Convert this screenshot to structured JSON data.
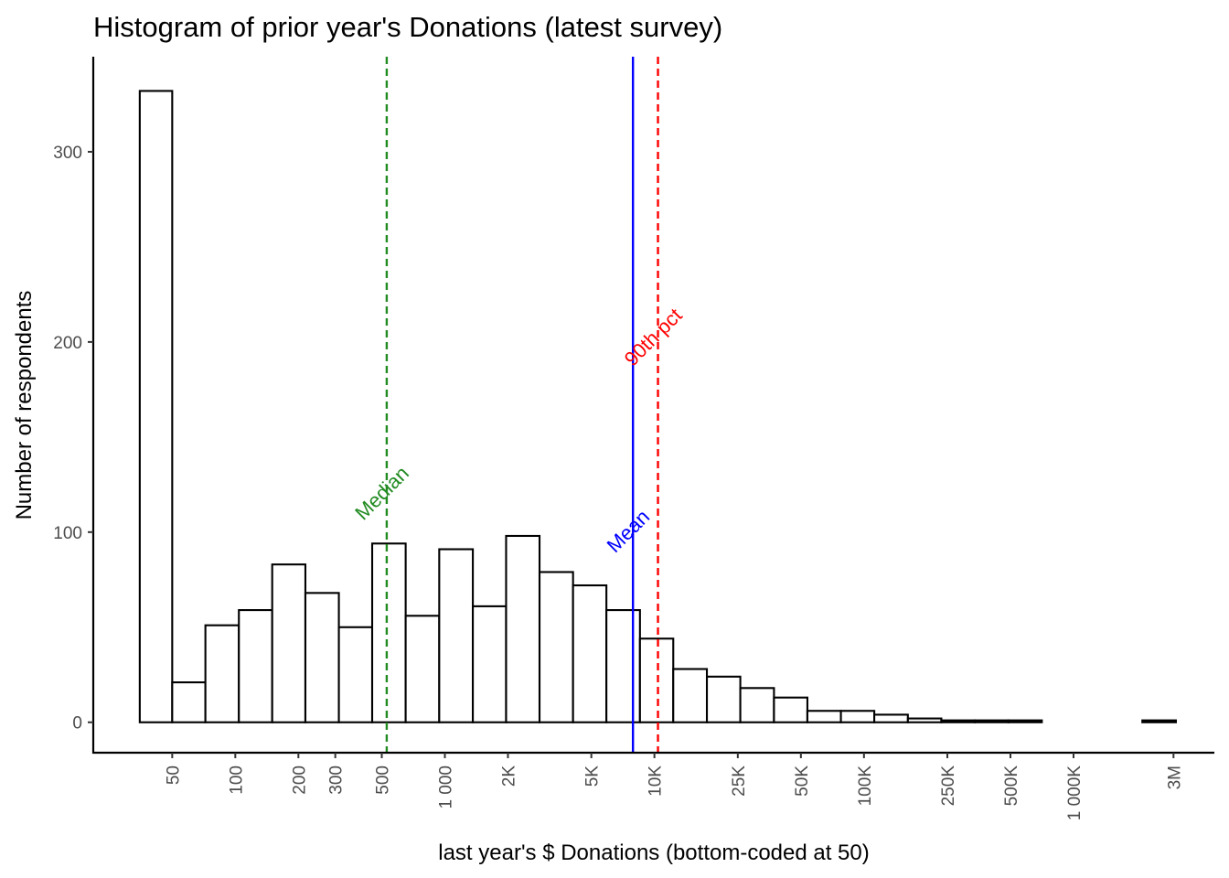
{
  "chart_data": {
    "type": "bar",
    "title": "Histogram of prior year's Donations (latest survey)",
    "xlabel": "last year's $ Donations (bottom-coded at 50)",
    "ylabel": "Number of respondents",
    "x_scale": "log",
    "grid": false,
    "y_ticks": [
      {
        "value": 0,
        "label": "0"
      },
      {
        "value": 100,
        "label": "100"
      },
      {
        "value": 200,
        "label": "200"
      },
      {
        "value": 300,
        "label": "300"
      }
    ],
    "ylim": [
      -16,
      350
    ],
    "x_ticks": [
      {
        "value": 50,
        "label": "50"
      },
      {
        "value": 100,
        "label": "100"
      },
      {
        "value": 200,
        "label": "200"
      },
      {
        "value": 300,
        "label": "300"
      },
      {
        "value": 500,
        "label": "500"
      },
      {
        "value": 1000,
        "label": "1 000"
      },
      {
        "value": 2000,
        "label": "2K"
      },
      {
        "value": 5000,
        "label": "5K"
      },
      {
        "value": 10000,
        "label": "10K"
      },
      {
        "value": 25000,
        "label": "25K"
      },
      {
        "value": 50000,
        "label": "50K"
      },
      {
        "value": 100000,
        "label": "100K"
      },
      {
        "value": 250000,
        "label": "250K"
      },
      {
        "value": 500000,
        "label": "500K"
      },
      {
        "value": 1000000,
        "label": "1 000K"
      },
      {
        "value": 3000000,
        "label": "3M"
      }
    ],
    "xlim": [
      21,
      4700000
    ],
    "bins": [
      {
        "x0": 35,
        "x1": 50,
        "count": 332
      },
      {
        "x0": 50,
        "x1": 72,
        "count": 21
      },
      {
        "x0": 72,
        "x1": 104,
        "count": 51
      },
      {
        "x0": 104,
        "x1": 150,
        "count": 59
      },
      {
        "x0": 150,
        "x1": 216,
        "count": 83
      },
      {
        "x0": 216,
        "x1": 312,
        "count": 68
      },
      {
        "x0": 312,
        "x1": 450,
        "count": 50
      },
      {
        "x0": 450,
        "x1": 650,
        "count": 94
      },
      {
        "x0": 650,
        "x1": 940,
        "count": 56
      },
      {
        "x0": 940,
        "x1": 1360,
        "count": 91
      },
      {
        "x0": 1360,
        "x1": 1960,
        "count": 61
      },
      {
        "x0": 1960,
        "x1": 2830,
        "count": 98
      },
      {
        "x0": 2830,
        "x1": 4090,
        "count": 79
      },
      {
        "x0": 4090,
        "x1": 5900,
        "count": 72
      },
      {
        "x0": 5900,
        "x1": 8530,
        "count": 59
      },
      {
        "x0": 8530,
        "x1": 12300,
        "count": 44
      },
      {
        "x0": 12300,
        "x1": 17800,
        "count": 28
      },
      {
        "x0": 17800,
        "x1": 25700,
        "count": 24
      },
      {
        "x0": 25700,
        "x1": 37200,
        "count": 18
      },
      {
        "x0": 37200,
        "x1": 53700,
        "count": 13
      },
      {
        "x0": 53700,
        "x1": 77600,
        "count": 6
      },
      {
        "x0": 77600,
        "x1": 112000,
        "count": 6
      },
      {
        "x0": 112000,
        "x1": 162000,
        "count": 4
      },
      {
        "x0": 162000,
        "x1": 234000,
        "count": 2
      },
      {
        "x0": 234000,
        "x1": 338000,
        "count": 1
      },
      {
        "x0": 338000,
        "x1": 489000,
        "count": 1
      },
      {
        "x0": 489000,
        "x1": 706000,
        "count": 1
      },
      {
        "x0": 706000,
        "x1": 1020000,
        "count": 0
      },
      {
        "x0": 1020000,
        "x1": 1470000,
        "count": 0
      },
      {
        "x0": 1470000,
        "x1": 2130000,
        "count": 0
      },
      {
        "x0": 2130000,
        "x1": 3080000,
        "count": 1
      }
    ],
    "reference_lines": [
      {
        "label": "Median",
        "x": 528,
        "color": "#228B22",
        "dash": true,
        "label_y": 118
      },
      {
        "label": "Mean",
        "x": 7900,
        "color": "#0000FF",
        "dash": false,
        "label_y": 98
      },
      {
        "label": "90th pct",
        "x": 10400,
        "color": "#FF0000",
        "dash": true,
        "label_y": 200
      }
    ]
  }
}
